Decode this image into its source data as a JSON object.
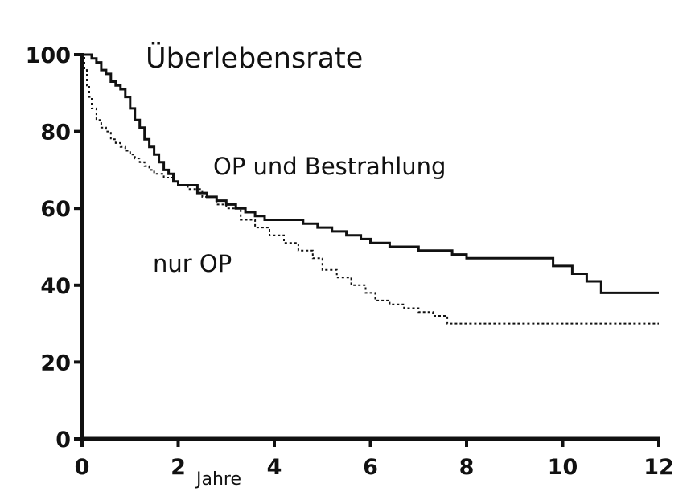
{
  "chart_data": {
    "type": "line",
    "title": "Überlebensrate",
    "xlabel": "Jahre",
    "ylabel": "",
    "xlim": [
      0,
      12
    ],
    "ylim": [
      0,
      100
    ],
    "x_ticks": [
      "0",
      "2",
      "4",
      "6",
      "8",
      "10",
      "12"
    ],
    "y_ticks": [
      "0",
      "20",
      "40",
      "60",
      "80",
      "100"
    ],
    "grid": false,
    "legend": "none",
    "step": true,
    "series": [
      {
        "name": "OP und Bestrahlung",
        "style": "solid",
        "color": "#111111",
        "x": [
          0,
          0.1,
          0.2,
          0.3,
          0.4,
          0.5,
          0.6,
          0.7,
          0.8,
          0.9,
          1.0,
          1.1,
          1.2,
          1.3,
          1.4,
          1.5,
          1.6,
          1.7,
          1.8,
          1.9,
          2.0,
          2.2,
          2.4,
          2.6,
          2.8,
          3.0,
          3.2,
          3.4,
          3.6,
          3.8,
          4.0,
          4.3,
          4.6,
          4.9,
          5.2,
          5.5,
          5.8,
          6.0,
          6.4,
          7.0,
          7.7,
          8.0,
          8.5,
          9.0,
          9.5,
          9.8,
          10.2,
          10.5,
          10.8,
          11.5,
          12.0
        ],
        "y": [
          100,
          100,
          99,
          98,
          96,
          95,
          93,
          92,
          91,
          89,
          86,
          83,
          81,
          78,
          76,
          74,
          72,
          70,
          69,
          67,
          66,
          66,
          64,
          63,
          62,
          61,
          60,
          59,
          58,
          57,
          57,
          57,
          56,
          55,
          54,
          53,
          52,
          51,
          50,
          49,
          48,
          47,
          47,
          47,
          47,
          45,
          43,
          41,
          38,
          38,
          38
        ]
      },
      {
        "name": "nur OP",
        "style": "dashed",
        "color": "#111111",
        "x": [
          0,
          0.05,
          0.1,
          0.15,
          0.2,
          0.3,
          0.4,
          0.5,
          0.6,
          0.7,
          0.8,
          0.9,
          1.0,
          1.1,
          1.2,
          1.3,
          1.4,
          1.5,
          1.7,
          1.9,
          2.0,
          2.2,
          2.5,
          2.8,
          3.0,
          3.3,
          3.6,
          3.9,
          4.2,
          4.5,
          4.8,
          5.0,
          5.3,
          5.6,
          5.9,
          6.1,
          6.4,
          6.7,
          7.0,
          7.3,
          7.6,
          8.0,
          9.0,
          10.0,
          11.0,
          12.0
        ],
        "y": [
          100,
          96,
          92,
          89,
          86,
          83,
          81,
          80,
          78,
          77,
          76,
          75,
          74,
          73,
          72,
          71,
          70,
          69,
          68,
          67,
          66,
          65,
          63,
          61,
          60,
          57,
          55,
          53,
          51,
          49,
          47,
          44,
          42,
          40,
          38,
          36,
          35,
          34,
          33,
          32,
          30,
          30,
          30,
          30,
          30,
          30
        ]
      }
    ]
  }
}
